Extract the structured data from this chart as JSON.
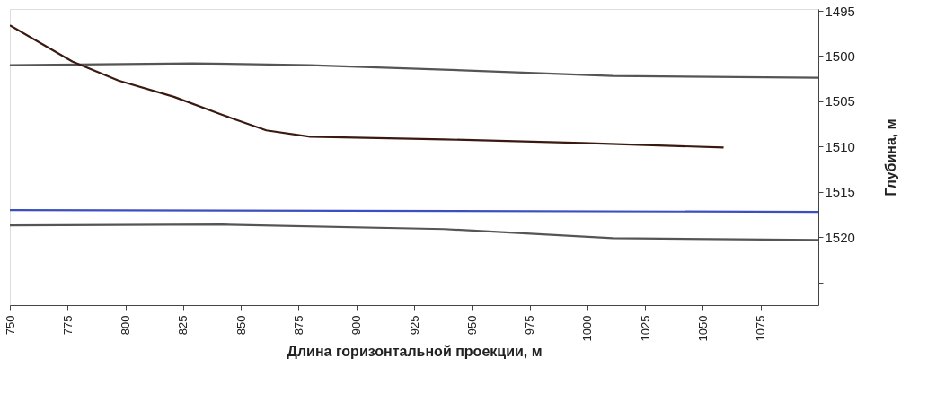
{
  "chart_data": {
    "type": "line",
    "xlabel": "Длина горизонтальной проекции, м",
    "ylabel": "Глубина, м",
    "xlim": [
      750,
      1100
    ],
    "xticks": [
      750,
      775,
      800,
      825,
      850,
      875,
      900,
      925,
      950,
      975,
      1000,
      1025,
      1050,
      1075
    ],
    "ylim": [
      1527.5,
      1494.8
    ],
    "yticks": [
      1495,
      1500,
      1505,
      1510,
      1515,
      1520,
      {
        "value": 1525,
        "label": null
      }
    ],
    "grid": false,
    "marker": "none",
    "line_style": "solid",
    "series": [
      {
        "color": "#555555",
        "x": [
          750,
          829,
          880,
          938,
          1011,
          1100
        ],
        "values": [
          1501.0,
          1500.8,
          1501.0,
          1501.5,
          1502.2,
          1502.4
        ]
      },
      {
        "color": "#555555",
        "x": [
          750,
          842,
          938,
          1011,
          1100
        ],
        "values": [
          1518.7,
          1518.6,
          1519.1,
          1520.1,
          1520.3
        ]
      },
      {
        "color": "#3b4fc0",
        "x": [
          750,
          1100
        ],
        "values": [
          1517.0,
          1517.2
        ]
      },
      {
        "color": "#3a1a10",
        "x": [
          750,
          777,
          797,
          821,
          842,
          861,
          880,
          938,
          998,
          1059
        ],
        "values": [
          1496.6,
          1500.6,
          1502.7,
          1504.5,
          1506.5,
          1508.2,
          1508.9,
          1509.2,
          1509.6,
          1510.1
        ]
      }
    ]
  }
}
